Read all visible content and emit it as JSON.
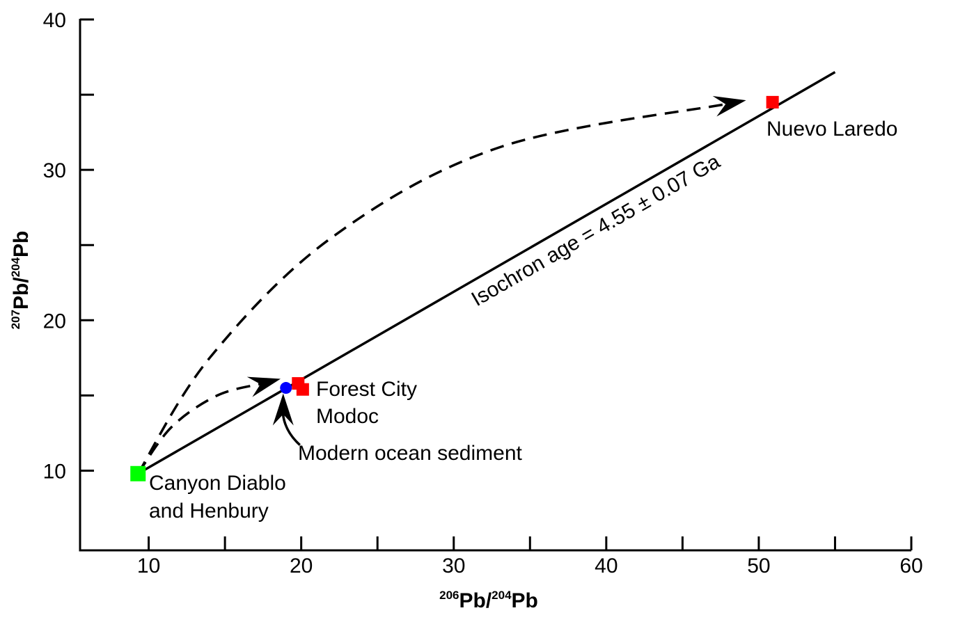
{
  "chart_data": {
    "type": "scatter",
    "xlabel": {
      "sup1": "206",
      "base1": "Pb/",
      "sup2": "204",
      "base2": "Pb"
    },
    "ylabel": {
      "sup1": "207",
      "base1": "Pb/",
      "sup2": "204",
      "base2": "Pb"
    },
    "xlim": [
      5.5,
      60
    ],
    "ylim": [
      4.7,
      40
    ],
    "x_ticks": [
      10,
      20,
      30,
      40,
      50,
      60
    ],
    "x_minor_ticks": [
      15,
      25,
      35,
      45,
      55
    ],
    "y_ticks": [
      10,
      20,
      30,
      40
    ],
    "y_minor_ticks": [
      15,
      25,
      35
    ],
    "grid": false,
    "points": [
      {
        "name": "Canyon Diablo and Henbury",
        "x": 9.3,
        "y": 9.8,
        "color": "#00ff00",
        "marker": "square"
      },
      {
        "name": "Forest City",
        "x": 19.8,
        "y": 15.8,
        "color": "#ff0000",
        "marker": "square"
      },
      {
        "name": "Modoc",
        "x": 20.1,
        "y": 15.4,
        "color": "#ff0000",
        "marker": "square"
      },
      {
        "name": "Modern ocean sediment",
        "x": 19.0,
        "y": 15.5,
        "color": "#0000ff",
        "marker": "circle"
      },
      {
        "name": "Nuevo Laredo",
        "x": 50.9,
        "y": 34.5,
        "color": "#ff0000",
        "marker": "square"
      }
    ],
    "isochron": {
      "x": [
        9.3,
        55.0
      ],
      "y": [
        9.8,
        36.5
      ],
      "label": "Isochron age = 4.55 ± 0.07 Ga"
    },
    "evolution_paths": [
      {
        "x": [
          9.3,
          11.5,
          14.5,
          17.5
        ],
        "y": [
          9.8,
          12.9,
          15.0,
          15.8
        ]
      },
      {
        "x": [
          9.3,
          14.0,
          22.0,
          33.0,
          48.0
        ],
        "y": [
          9.8,
          17.5,
          25.5,
          31.5,
          34.4
        ]
      }
    ],
    "labels": {
      "canyon": [
        "Canyon Diablo",
        "and Henbury"
      ],
      "forest": "Forest City",
      "modoc": "Modoc",
      "sediment": "Modern ocean sediment",
      "nuevo": "Nuevo Laredo"
    }
  }
}
